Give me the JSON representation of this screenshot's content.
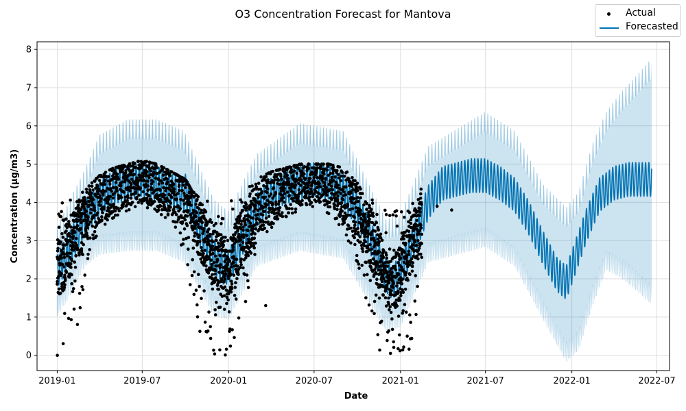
{
  "chart_data": {
    "type": "line",
    "title": "O3 Concentration Forecast for Mantova",
    "xlabel": "Date",
    "ylabel": "Concentration (µg/m3)",
    "xlim": [
      "2018-11-19",
      "2022-07-28"
    ],
    "ylim": [
      -0.4,
      8.2
    ],
    "x_ticks": [
      "2019-01",
      "2019-07",
      "2020-01",
      "2020-07",
      "2021-01",
      "2021-07",
      "2022-01",
      "2022-07"
    ],
    "y_ticks": [
      0,
      1,
      2,
      3,
      4,
      5,
      6,
      7,
      8
    ],
    "grid": true,
    "legend": {
      "position": "top-right",
      "entries": [
        "Actual",
        "Forecasted"
      ]
    },
    "colors": {
      "actual": "#000000",
      "forecast_line": "#0072B2",
      "uncertainty_band": "#0072B2",
      "grid": "#dddddd"
    },
    "series": [
      {
        "name": "Actual",
        "style": "points",
        "observed_range": [
          "2019-01-01",
          "2021-02-15"
        ],
        "weekly_envelope_min": [
          [
            "2019-01-01",
            0.0
          ],
          [
            "2019-01-15",
            0.0
          ],
          [
            "2019-02-01",
            0.3
          ],
          [
            "2019-02-15",
            0.7
          ],
          [
            "2019-03-01",
            2.0
          ],
          [
            "2019-03-15",
            2.8
          ],
          [
            "2019-04-01",
            3.3
          ],
          [
            "2019-05-01",
            3.6
          ],
          [
            "2019-06-01",
            3.8
          ],
          [
            "2019-07-01",
            3.9
          ],
          [
            "2019-08-01",
            3.7
          ],
          [
            "2019-09-01",
            3.5
          ],
          [
            "2019-10-01",
            2.6
          ],
          [
            "2019-10-15",
            1.5
          ],
          [
            "2019-11-01",
            0.0
          ],
          [
            "2019-11-15",
            0.0
          ],
          [
            "2019-12-01",
            0.0
          ],
          [
            "2019-12-15",
            0.0
          ],
          [
            "2020-01-01",
            0.0
          ],
          [
            "2020-01-15",
            0.3
          ],
          [
            "2020-02-01",
            1.1
          ],
          [
            "2020-02-15",
            1.8
          ],
          [
            "2020-03-01",
            2.6
          ],
          [
            "2020-03-15",
            3.1
          ],
          [
            "2020-04-01",
            3.3
          ],
          [
            "2020-05-01",
            3.6
          ],
          [
            "2020-06-01",
            3.8
          ],
          [
            "2020-07-01",
            3.9
          ],
          [
            "2020-08-01",
            3.7
          ],
          [
            "2020-09-01",
            3.3
          ],
          [
            "2020-10-01",
            2.4
          ],
          [
            "2020-10-15",
            1.5
          ],
          [
            "2020-11-01",
            0.9
          ],
          [
            "2020-11-15",
            0.1
          ],
          [
            "2020-12-01",
            0.0
          ],
          [
            "2020-12-15",
            0.0
          ],
          [
            "2021-01-01",
            0.0
          ],
          [
            "2021-01-15",
            0.0
          ],
          [
            "2021-02-01",
            0.2
          ],
          [
            "2021-02-15",
            2.0
          ]
        ],
        "weekly_envelope_max": [
          [
            "2019-01-01",
            4.0
          ],
          [
            "2019-01-15",
            4.0
          ],
          [
            "2019-02-01",
            4.1
          ],
          [
            "2019-02-15",
            4.2
          ],
          [
            "2019-03-01",
            4.3
          ],
          [
            "2019-03-15",
            4.5
          ],
          [
            "2019-04-01",
            4.7
          ],
          [
            "2019-05-01",
            4.9
          ],
          [
            "2019-06-01",
            5.0
          ],
          [
            "2019-07-01",
            5.1
          ],
          [
            "2019-08-01",
            5.0
          ],
          [
            "2019-09-01",
            4.8
          ],
          [
            "2019-10-01",
            4.6
          ],
          [
            "2019-10-15",
            4.3
          ],
          [
            "2019-11-01",
            4.1
          ],
          [
            "2019-11-15",
            4.1
          ],
          [
            "2019-12-01",
            4.0
          ],
          [
            "2019-12-15",
            4.0
          ],
          [
            "2020-01-01",
            4.0
          ],
          [
            "2020-01-15",
            4.1
          ],
          [
            "2020-02-01",
            4.4
          ],
          [
            "2020-02-15",
            4.5
          ],
          [
            "2020-03-01",
            4.6
          ],
          [
            "2020-03-15",
            4.7
          ],
          [
            "2020-04-01",
            4.8
          ],
          [
            "2020-05-01",
            4.9
          ],
          [
            "2020-06-01",
            5.0
          ],
          [
            "2020-07-01",
            5.0
          ],
          [
            "2020-08-01",
            5.0
          ],
          [
            "2020-09-01",
            4.9
          ],
          [
            "2020-10-01",
            4.5
          ],
          [
            "2020-10-15",
            4.2
          ],
          [
            "2020-11-01",
            4.1
          ],
          [
            "2020-11-15",
            4.1
          ],
          [
            "2020-12-01",
            4.0
          ],
          [
            "2020-12-15",
            4.0
          ],
          [
            "2021-01-01",
            4.0
          ],
          [
            "2021-01-15",
            4.0
          ],
          [
            "2021-02-01",
            4.0
          ],
          [
            "2021-02-15",
            4.4
          ]
        ],
        "notable_outliers": [
          [
            "2019-09-20",
            3.2
          ],
          [
            "2019-09-05",
            3.5
          ],
          [
            "2020-03-20",
            1.3
          ],
          [
            "2020-09-10",
            3.3
          ],
          [
            "2021-03-20",
            3.9
          ],
          [
            "2021-04-20",
            3.8
          ]
        ]
      },
      {
        "name": "Forecasted",
        "style": "line",
        "range": [
          "2019-01-01",
          "2022-06-20"
        ],
        "trend_center": [
          [
            "2019-01-01",
            2.2
          ],
          [
            "2019-02-01",
            2.9
          ],
          [
            "2019-03-01",
            3.6
          ],
          [
            "2019-04-01",
            4.1
          ],
          [
            "2019-05-01",
            4.4
          ],
          [
            "2019-06-01",
            4.5
          ],
          [
            "2019-07-01",
            4.6
          ],
          [
            "2019-08-01",
            4.5
          ],
          [
            "2019-09-01",
            4.3
          ],
          [
            "2019-09-28",
            4.2
          ],
          [
            "2019-10-01",
            4.3
          ],
          [
            "2019-10-15",
            3.9
          ],
          [
            "2019-11-01",
            3.3
          ],
          [
            "2019-12-01",
            2.6
          ],
          [
            "2019-12-20",
            2.3
          ],
          [
            "2020-01-01",
            2.3
          ],
          [
            "2020-02-01",
            3.1
          ],
          [
            "2020-03-01",
            3.8
          ],
          [
            "2020-04-01",
            4.2
          ],
          [
            "2020-05-01",
            4.4
          ],
          [
            "2020-06-01",
            4.5
          ],
          [
            "2020-07-01",
            4.6
          ],
          [
            "2020-08-10",
            4.5
          ],
          [
            "2020-08-15",
            4.4
          ],
          [
            "2020-09-01",
            4.3
          ],
          [
            "2020-10-01",
            3.8
          ],
          [
            "2020-11-01",
            3.0
          ],
          [
            "2020-12-01",
            2.1
          ],
          [
            "2020-12-15",
            1.9
          ],
          [
            "2021-01-01",
            2.2
          ],
          [
            "2021-02-01",
            3.1
          ],
          [
            "2021-03-01",
            4.0
          ],
          [
            "2021-04-01",
            4.5
          ],
          [
            "2021-05-01",
            4.6
          ],
          [
            "2021-06-01",
            4.7
          ],
          [
            "2021-07-01",
            4.7
          ],
          [
            "2021-08-01",
            4.5
          ],
          [
            "2021-09-01",
            4.2
          ],
          [
            "2021-10-01",
            3.6
          ],
          [
            "2021-11-01",
            2.8
          ],
          [
            "2021-12-01",
            2.1
          ],
          [
            "2021-12-20",
            1.9
          ],
          [
            "2022-01-01",
            2.3
          ],
          [
            "2022-02-01",
            3.4
          ],
          [
            "2022-03-01",
            4.2
          ],
          [
            "2022-04-01",
            4.5
          ],
          [
            "2022-05-01",
            4.6
          ],
          [
            "2022-06-20",
            4.6
          ]
        ],
        "weekly_amplitude": 0.45,
        "uncertainty_lower": [
          [
            "2019-01-01",
            1.3
          ],
          [
            "2019-02-01",
            1.9
          ],
          [
            "2019-03-01",
            2.6
          ],
          [
            "2019-04-01",
            2.9
          ],
          [
            "2019-06-01",
            3.0
          ],
          [
            "2019-08-01",
            3.0
          ],
          [
            "2019-09-28",
            2.7
          ],
          [
            "2019-12-01",
            1.3
          ],
          [
            "2020-01-01",
            1.2
          ],
          [
            "2020-03-01",
            2.6
          ],
          [
            "2020-06-01",
            3.0
          ],
          [
            "2020-09-01",
            2.8
          ],
          [
            "2020-12-01",
            0.9
          ],
          [
            "2021-01-01",
            1.0
          ],
          [
            "2021-03-01",
            2.7
          ],
          [
            "2021-07-01",
            3.1
          ],
          [
            "2021-09-01",
            2.6
          ],
          [
            "2021-11-01",
            1.2
          ],
          [
            "2021-12-20",
            0.1
          ],
          [
            "2022-01-15",
            0.4
          ],
          [
            "2022-02-15",
            1.6
          ],
          [
            "2022-03-15",
            2.5
          ],
          [
            "2022-04-15",
            2.3
          ],
          [
            "2022-05-15",
            2.0
          ],
          [
            "2022-06-20",
            1.6
          ]
        ],
        "uncertainty_upper": [
          [
            "2019-01-01",
            3.1
          ],
          [
            "2019-02-01",
            3.9
          ],
          [
            "2019-03-01",
            4.6
          ],
          [
            "2019-04-01",
            5.5
          ],
          [
            "2019-06-01",
            5.9
          ],
          [
            "2019-08-01",
            5.9
          ],
          [
            "2019-09-28",
            5.6
          ],
          [
            "2019-12-01",
            3.8
          ],
          [
            "2020-01-01",
            3.5
          ],
          [
            "2020-03-01",
            5.0
          ],
          [
            "2020-06-01",
            5.8
          ],
          [
            "2020-09-01",
            5.6
          ],
          [
            "2020-12-01",
            3.3
          ],
          [
            "2021-01-01",
            3.4
          ],
          [
            "2021-03-01",
            5.2
          ],
          [
            "2021-07-01",
            6.1
          ],
          [
            "2021-09-01",
            5.6
          ],
          [
            "2021-11-01",
            4.2
          ],
          [
            "2021-12-20",
            3.6
          ],
          [
            "2022-01-15",
            4.0
          ],
          [
            "2022-02-15",
            5.3
          ],
          [
            "2022-03-15",
            6.1
          ],
          [
            "2022-04-15",
            6.6
          ],
          [
            "2022-05-15",
            7.0
          ],
          [
            "2022-06-20",
            7.5
          ]
        ]
      }
    ]
  }
}
